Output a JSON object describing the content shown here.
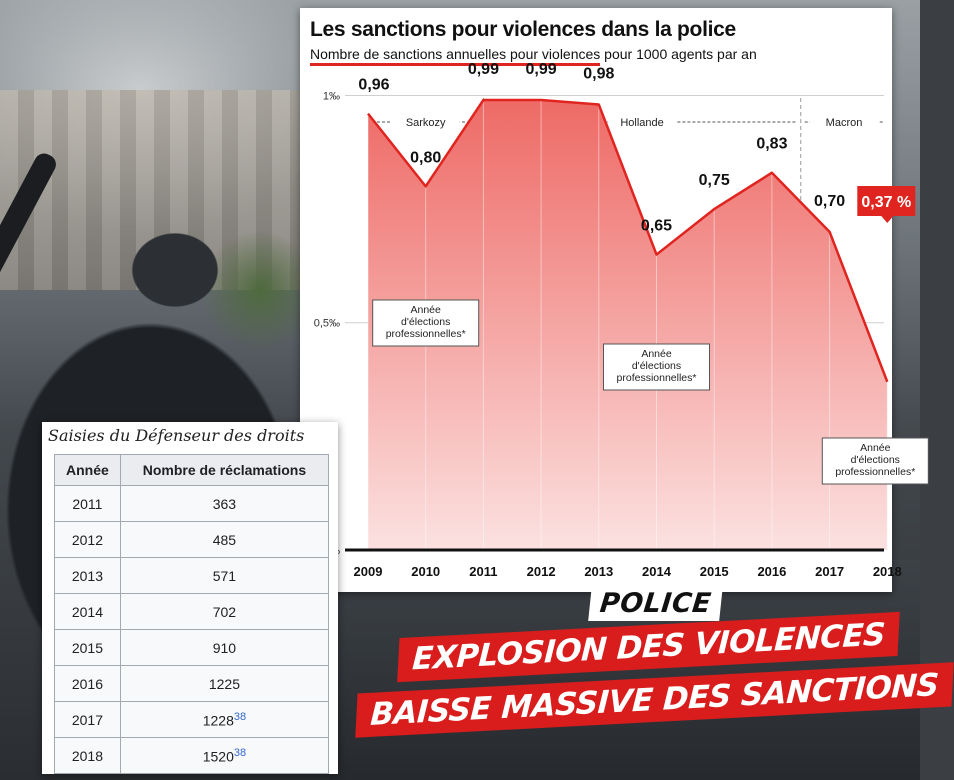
{
  "chart_data": {
    "type": "area",
    "title": "Les sanctions pour violences dans la police",
    "subtitle_underlined": "Nombre de sanctions annuelles pour violences",
    "subtitle_rest": " pour 1000 agents par an",
    "x": [
      "2009",
      "2010",
      "2011",
      "2012",
      "2013",
      "2014",
      "2015",
      "2016",
      "2017",
      "2018"
    ],
    "values": [
      0.96,
      0.8,
      0.99,
      0.99,
      0.98,
      0.65,
      0.75,
      0.83,
      0.7,
      0.37
    ],
    "value_labels": [
      "0,96",
      "0,80",
      "0,99",
      "0,99",
      "0,98",
      "0,65",
      "0,75",
      "0,83",
      "0,70",
      "0,37 %"
    ],
    "y_ticks": [
      {
        "value": 1.0,
        "label": "1‰"
      },
      {
        "value": 0.5,
        "label": "0,5‰"
      },
      {
        "value": 0.0,
        "label": "‰"
      }
    ],
    "ylim": [
      0,
      1.1
    ],
    "periods": [
      {
        "label": "Sarkozy",
        "from": 2009,
        "to": 2011
      },
      {
        "label": "Hollande",
        "from": 2011,
        "to": 2016.5
      },
      {
        "label": "Macron",
        "from": 2016.5,
        "to": 2018
      }
    ],
    "annotations": [
      {
        "year": 2010,
        "lines": [
          "Année",
          "d'élections",
          "professionnelles*"
        ]
      },
      {
        "year": 2014,
        "lines": [
          "Année",
          "d'élections",
          "professionnelles*"
        ]
      },
      {
        "year": 2018,
        "lines": [
          "Année",
          "d'élections",
          "professionnelles*"
        ]
      }
    ],
    "colors": {
      "line": "#e0241f",
      "fill_top": "#ee6a66",
      "fill_bottom": "#fbe1e0",
      "highlight": "#e0241f"
    },
    "grid": true
  },
  "table": {
    "caption": "Saisies du Défenseur des droits",
    "headers": [
      "Année",
      "Nombre de réclamations"
    ],
    "rows": [
      {
        "year": "2011",
        "count": "363",
        "ref": ""
      },
      {
        "year": "2012",
        "count": "485",
        "ref": ""
      },
      {
        "year": "2013",
        "count": "571",
        "ref": ""
      },
      {
        "year": "2014",
        "count": "702",
        "ref": ""
      },
      {
        "year": "2015",
        "count": "910",
        "ref": ""
      },
      {
        "year": "2016",
        "count": "1225",
        "ref": ""
      },
      {
        "year": "2017",
        "count": "1228",
        "ref": "38"
      },
      {
        "year": "2018",
        "count": "1520",
        "ref": "38"
      }
    ]
  },
  "slogan": {
    "tag": "POLICE",
    "line1": "EXPLOSION DES VIOLENCES",
    "line2": "BAISSE MASSIVE DES SANCTIONS",
    "color": "#d91c1c"
  },
  "photo": {
    "subject": "riot-police-photo"
  }
}
